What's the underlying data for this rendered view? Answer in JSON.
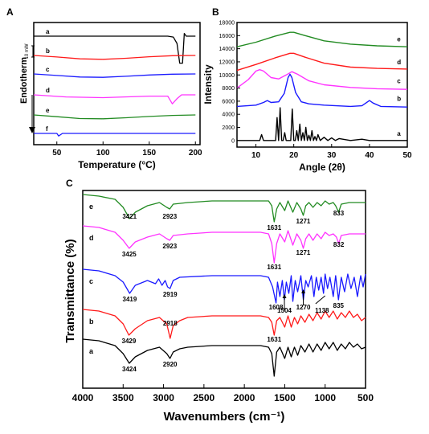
{
  "panel_labels": {
    "a": "A",
    "b": "B",
    "c": "C"
  },
  "chart_data": [
    {
      "panel": "A",
      "type": "line",
      "xlabel": "Temperature (°C)",
      "ylabel": "Endotherm",
      "scale_bar_label": "10 mW",
      "xlim": [
        25,
        205
      ],
      "xticks": [
        50,
        100,
        150,
        200
      ],
      "series": [
        {
          "name": "a",
          "color": "#000000",
          "x": [
            25,
            100,
            170,
            176,
            180,
            183,
            186,
            188,
            190,
            195,
            200
          ],
          "y": [
            0,
            0,
            0,
            -1,
            -8,
            -30,
            -30,
            3,
            0,
            0,
            0
          ]
        },
        {
          "name": "b",
          "color": "#ff1a1a",
          "x": [
            25,
            50,
            75,
            100,
            125,
            150,
            175,
            200
          ],
          "y": [
            0,
            -0.6,
            -1.3,
            -1.5,
            -1.1,
            -0.5,
            -0.1,
            0
          ]
        },
        {
          "name": "c",
          "color": "#1a1aff",
          "x": [
            25,
            50,
            75,
            100,
            125,
            150,
            175,
            200
          ],
          "y": [
            0,
            -0.6,
            -1.2,
            -1.3,
            -0.9,
            -0.4,
            -0.1,
            0
          ]
        },
        {
          "name": "d",
          "color": "#ff33ff",
          "x": [
            25,
            60,
            100,
            150,
            170,
            175,
            180,
            185,
            200
          ],
          "y": [
            0,
            -0.8,
            -1.1,
            -0.5,
            -0.5,
            -3.5,
            -1.5,
            0,
            0
          ]
        },
        {
          "name": "e",
          "color": "#228b22",
          "x": [
            25,
            50,
            75,
            100,
            125,
            150,
            175,
            200
          ],
          "y": [
            0,
            -0.7,
            -1.4,
            -1.5,
            -1.1,
            -0.6,
            -0.2,
            0
          ]
        },
        {
          "name": "f",
          "color": "#1a1aff",
          "x": [
            25,
            50,
            52,
            56,
            100,
            150,
            200
          ],
          "y": [
            0,
            0,
            -1.0,
            0,
            0,
            0,
            0
          ]
        }
      ]
    },
    {
      "panel": "B",
      "type": "line",
      "xlabel": "Angle (2θ)",
      "ylabel": "Intensity",
      "xlim": [
        5,
        50
      ],
      "ylim": [
        -1000,
        18000
      ],
      "xticks": [
        10,
        20,
        30,
        40,
        50
      ],
      "yticks": [
        0,
        2000,
        4000,
        6000,
        8000,
        10000,
        12000,
        14000,
        16000,
        18000
      ],
      "series": [
        {
          "name": "e",
          "color": "#228b22",
          "x": [
            5,
            10,
            15,
            19,
            20,
            23,
            28,
            35,
            42,
            50
          ],
          "y": [
            14300,
            15000,
            15900,
            16500,
            16500,
            16000,
            15200,
            14700,
            14450,
            14300
          ]
        },
        {
          "name": "d",
          "color": "#ff1a1a",
          "x": [
            5,
            10,
            15,
            19,
            20,
            23,
            28,
            35,
            42,
            50
          ],
          "y": [
            10700,
            11600,
            12600,
            13300,
            13300,
            12700,
            11800,
            11200,
            11000,
            10900
          ]
        },
        {
          "name": "c",
          "color": "#ff33ff",
          "x": [
            5,
            8,
            10,
            11,
            12,
            14,
            16,
            18,
            19.5,
            21,
            24,
            28,
            35,
            42,
            50
          ],
          "y": [
            8000,
            9300,
            10600,
            10800,
            10600,
            9600,
            9400,
            10000,
            10500,
            10100,
            9100,
            8500,
            8100,
            7900,
            7800
          ]
        },
        {
          "name": "b",
          "color": "#1a1aff",
          "x": [
            5,
            10,
            12,
            13,
            14,
            16,
            17.5,
            18.5,
            19,
            19.5,
            20.5,
            22,
            24,
            28,
            35,
            38,
            40,
            41,
            43,
            50
          ],
          "y": [
            5200,
            5400,
            5800,
            6100,
            5800,
            5900,
            7200,
            9600,
            10100,
            9600,
            7300,
            5900,
            5600,
            5400,
            5200,
            5300,
            6100,
            5700,
            5200,
            5100
          ]
        },
        {
          "name": "a",
          "color": "#000000",
          "x": [
            5,
            11,
            11.5,
            12,
            14,
            15.2,
            15.6,
            16.0,
            16.4,
            16.8,
            17.2,
            17.6,
            18.0,
            18.4,
            18.8,
            19.2,
            19.6,
            20.0,
            20.4,
            20.8,
            21.2,
            21.6,
            22.0,
            22.4,
            22.8,
            23.2,
            23.6,
            24.0,
            24.4,
            24.8,
            25.2,
            25.6,
            26.0,
            26.4,
            27.0,
            28.0,
            29.0,
            30.0,
            31.0,
            32.0,
            35.0,
            38.0,
            40.0,
            45.0,
            50.0
          ],
          "y": [
            0,
            0,
            900,
            0,
            0,
            0,
            3500,
            0,
            5000,
            0,
            0,
            1200,
            0,
            0,
            0,
            0,
            4800,
            0,
            0,
            1500,
            0,
            2500,
            0,
            1200,
            0,
            2000,
            0,
            800,
            0,
            1500,
            0,
            600,
            0,
            900,
            0,
            500,
            0,
            400,
            0,
            300,
            0,
            200,
            0,
            0,
            0
          ]
        }
      ],
      "curve_labels": [
        "a",
        "b",
        "c",
        "d",
        "e"
      ]
    },
    {
      "panel": "C",
      "type": "line",
      "xlabel": "Wavenumbers (cm⁻¹)",
      "ylabel": "Transmittance (%)",
      "xlim": [
        4000,
        500
      ],
      "xticks": [
        4000,
        3500,
        3000,
        2500,
        2000,
        1500,
        1000,
        500
      ],
      "series": [
        {
          "name": "e",
          "color": "#228b22",
          "x": [
            4000,
            3800,
            3600,
            3500,
            3421,
            3350,
            3200,
            3050,
            2960,
            2923,
            2880,
            2700,
            2400,
            2000,
            1800,
            1700,
            1660,
            1631,
            1600,
            1560,
            1500,
            1460,
            1400,
            1350,
            1300,
            1271,
            1240,
            1200,
            1150,
            1100,
            1050,
            1000,
            950,
            900,
            870,
            833,
            800,
            700,
            600,
            500
          ],
          "y": [
            5,
            4,
            2,
            -3,
            -10,
            -6,
            -2,
            0,
            -3,
            -4,
            -1,
            0,
            1,
            1,
            1,
            1,
            -2,
            -12,
            -4,
            0,
            -5,
            1,
            -6,
            0,
            -4,
            -8,
            -2,
            0,
            -3,
            0,
            -2,
            1,
            -1,
            0,
            -2,
            -6,
            -1,
            0,
            0,
            0
          ]
        },
        {
          "name": "d",
          "color": "#ff33ff",
          "x": [
            4000,
            3800,
            3600,
            3500,
            3425,
            3350,
            3200,
            3050,
            2960,
            2923,
            2880,
            2700,
            2400,
            2000,
            1800,
            1700,
            1660,
            1631,
            1600,
            1560,
            1500,
            1460,
            1400,
            1350,
            1300,
            1271,
            1240,
            1200,
            1150,
            1100,
            1050,
            1000,
            950,
            900,
            860,
            832,
            800,
            700,
            600,
            500
          ],
          "y": [
            5,
            4,
            1,
            -4,
            -9,
            -5,
            -2,
            0,
            -3,
            -4,
            -1,
            0,
            1,
            1,
            1,
            0,
            -6,
            -18,
            -6,
            0,
            -5,
            2,
            -7,
            0,
            -4,
            -9,
            -3,
            0,
            -4,
            0,
            -3,
            1,
            -1,
            0,
            -2,
            -6,
            -1,
            0,
            0,
            0
          ]
        },
        {
          "name": "c",
          "color": "#1a1aff",
          "x": [
            4000,
            3800,
            3600,
            3500,
            3419,
            3350,
            3200,
            3100,
            3060,
            3020,
            2980,
            2950,
            2919,
            2880,
            2800,
            2400,
            2000,
            1800,
            1700,
            1650,
            1608,
            1590,
            1560,
            1530,
            1504,
            1480,
            1450,
            1420,
            1400,
            1370,
            1340,
            1300,
            1270,
            1240,
            1210,
            1170,
            1138,
            1110,
            1080,
            1050,
            1020,
            1000,
            970,
            940,
            900,
            870,
            835,
            800,
            760,
            720,
            680,
            640,
            600,
            560,
            530,
            500
          ],
          "y": [
            5,
            4,
            1,
            -3,
            -10,
            -5,
            -2,
            -4,
            -1,
            -5,
            -2,
            -6,
            -7,
            -2,
            0,
            1,
            1,
            1,
            0,
            -6,
            -16,
            -3,
            -12,
            -2,
            -14,
            -3,
            -10,
            1,
            -15,
            -2,
            -9,
            1,
            -14,
            -2,
            -6,
            1,
            -12,
            0,
            -8,
            0,
            -10,
            2,
            -7,
            0,
            -12,
            1,
            -14,
            0,
            -9,
            2,
            -7,
            0,
            -12,
            1,
            -6,
            2
          ]
        },
        {
          "name": "b",
          "color": "#ff1a1a",
          "x": [
            4000,
            3800,
            3600,
            3500,
            3429,
            3350,
            3200,
            3050,
            2960,
            2918,
            2880,
            2800,
            2700,
            2400,
            2000,
            1800,
            1700,
            1660,
            1631,
            1600,
            1560,
            1500,
            1460,
            1420,
            1380,
            1340,
            1300,
            1250,
            1200,
            1150,
            1100,
            1050,
            1000,
            950,
            900,
            850,
            800,
            750,
            700,
            650,
            600,
            550,
            500
          ],
          "y": [
            5,
            4,
            1,
            -4,
            -11,
            -7,
            -2,
            0,
            -4,
            -13,
            -5,
            -2,
            0,
            1,
            1,
            1,
            0,
            -3,
            -11,
            -2,
            0,
            -6,
            1,
            -6,
            0,
            -4,
            1,
            -3,
            2,
            -2,
            3,
            -1,
            4,
            0,
            4,
            -1,
            3,
            0,
            4,
            0,
            2,
            -2,
            0
          ]
        },
        {
          "name": "a",
          "color": "#000000",
          "x": [
            4000,
            3800,
            3600,
            3500,
            3424,
            3350,
            3200,
            3050,
            2960,
            2920,
            2880,
            2800,
            2700,
            2400,
            2000,
            1800,
            1700,
            1660,
            1631,
            1600,
            1560,
            1500,
            1460,
            1420,
            1380,
            1340,
            1300,
            1250,
            1200,
            1150,
            1100,
            1050,
            1000,
            950,
            900,
            850,
            800,
            750,
            700,
            650,
            600,
            550,
            500
          ],
          "y": [
            5,
            4,
            1,
            -4,
            -10,
            -6,
            -2,
            0,
            -4,
            -7,
            -3,
            -1,
            0,
            1,
            1,
            1,
            0,
            -4,
            -18,
            -3,
            0,
            -7,
            0,
            -6,
            0,
            -5,
            1,
            -3,
            2,
            -3,
            2,
            -2,
            3,
            -1,
            3,
            -2,
            2,
            -1,
            3,
            0,
            2,
            -1,
            0
          ]
        }
      ],
      "peak_labels": [
        {
          "text": "3421",
          "curve": "e",
          "x": 3421
        },
        {
          "text": "2923",
          "curve": "e",
          "x": 2923
        },
        {
          "text": "1631",
          "curve": "e",
          "x": 1631
        },
        {
          "text": "1271",
          "curve": "e",
          "x": 1271
        },
        {
          "text": "833",
          "curve": "e",
          "x": 833
        },
        {
          "text": "3425",
          "curve": "d",
          "x": 3425
        },
        {
          "text": "2923",
          "curve": "d",
          "x": 2923
        },
        {
          "text": "1631",
          "curve": "d",
          "x": 1631
        },
        {
          "text": "1271",
          "curve": "d",
          "x": 1271
        },
        {
          "text": "832",
          "curve": "d",
          "x": 832
        },
        {
          "text": "3419",
          "curve": "c",
          "x": 3419
        },
        {
          "text": "2919",
          "curve": "c",
          "x": 2919
        },
        {
          "text": "1608",
          "curve": "c",
          "x": 1608
        },
        {
          "text": "1504",
          "curve": "c",
          "x": 1504
        },
        {
          "text": "1270",
          "curve": "c",
          "x": 1270
        },
        {
          "text": "1138",
          "curve": "c",
          "x": 1138
        },
        {
          "text": "835",
          "curve": "c",
          "x": 835
        },
        {
          "text": "3429",
          "curve": "b",
          "x": 3429
        },
        {
          "text": "2918",
          "curve": "b",
          "x": 2918
        },
        {
          "text": "1631",
          "curve": "b",
          "x": 1631
        },
        {
          "text": "3424",
          "curve": "a",
          "x": 3424
        },
        {
          "text": "2920",
          "curve": "a",
          "x": 2920
        }
      ]
    }
  ]
}
